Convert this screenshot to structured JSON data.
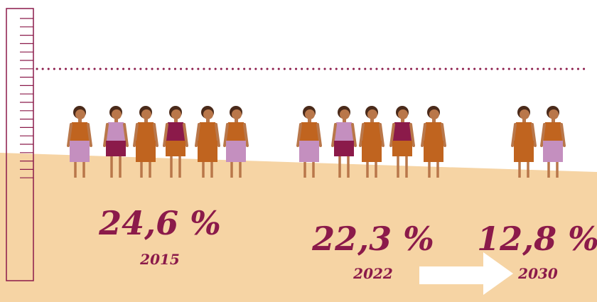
{
  "items": [
    {
      "value": "24,6 %",
      "year": "2015"
    },
    {
      "value": "22,3 %",
      "year": "2022"
    },
    {
      "value": "12,8 %",
      "year": "2030"
    }
  ]
}
